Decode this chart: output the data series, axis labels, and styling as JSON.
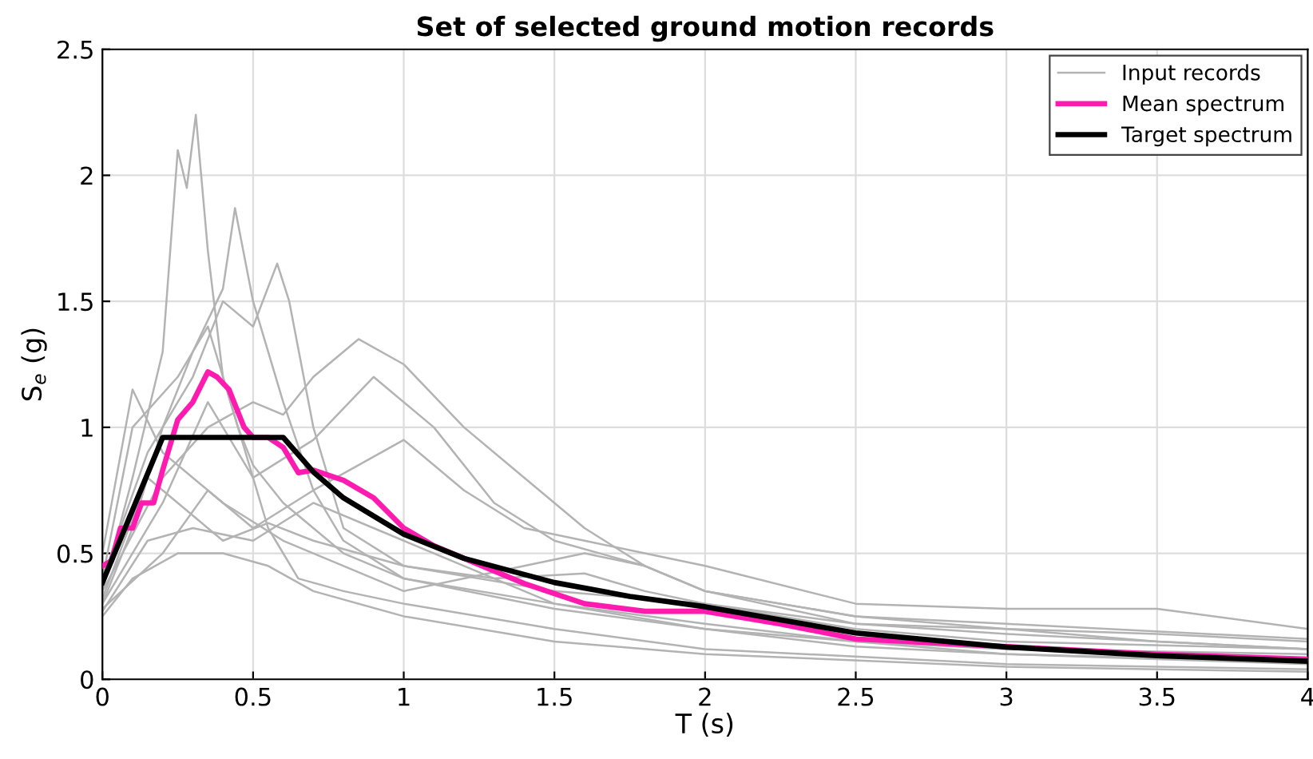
{
  "chart_data": {
    "type": "line",
    "title": "Set of selected ground motion records",
    "xlabel": "T (s)",
    "ylabel": "S$_{e}$ (g)",
    "xlim": [
      0,
      4
    ],
    "ylim": [
      0,
      2.5
    ],
    "xticks": [
      0,
      0.5,
      1,
      1.5,
      2,
      2.5,
      3,
      3.5,
      4
    ],
    "yticks": [
      0,
      0.5,
      1,
      1.5,
      2,
      2.5
    ],
    "grid": true,
    "legend": "top right",
    "marker": "none",
    "line_style": "solid",
    "series": [
      {
        "name": "Input records",
        "color": "#b3b3b3",
        "x": [
          0,
          0.1,
          0.2,
          0.25,
          0.28,
          0.31,
          0.35,
          0.4,
          0.45,
          0.5,
          0.6,
          0.8,
          1,
          1.5,
          2,
          2.5,
          3,
          3.5,
          4
        ],
        "values": [
          0.35,
          0.8,
          1.3,
          2.1,
          1.95,
          2.24,
          1.7,
          1.2,
          1.0,
          0.85,
          0.7,
          0.5,
          0.4,
          0.28,
          0.2,
          0.13,
          0.1,
          0.08,
          0.06
        ]
      },
      {
        "color": "#b3b3b3",
        "x": [
          0,
          0.1,
          0.2,
          0.3,
          0.4,
          0.44,
          0.5,
          0.55,
          0.6,
          0.7,
          0.8,
          1,
          1.5,
          2,
          2.5,
          3,
          4
        ],
        "values": [
          0.3,
          0.6,
          1.0,
          1.3,
          1.55,
          1.87,
          1.5,
          1.3,
          1.1,
          0.75,
          0.55,
          0.4,
          0.3,
          0.2,
          0.15,
          0.12,
          0.1
        ]
      },
      {
        "color": "#b3b3b3",
        "x": [
          0,
          0.15,
          0.3,
          0.4,
          0.5,
          0.58,
          0.62,
          0.7,
          0.8,
          1,
          1.5,
          2,
          2.5,
          3,
          4
        ],
        "values": [
          0.4,
          0.9,
          1.2,
          1.5,
          1.4,
          1.65,
          1.5,
          1.0,
          0.6,
          0.45,
          0.35,
          0.3,
          0.2,
          0.15,
          0.12
        ]
      },
      {
        "color": "#b3b3b3",
        "x": [
          0,
          0.2,
          0.35,
          0.5,
          0.6,
          0.7,
          0.85,
          1.0,
          1.2,
          1.4,
          1.6,
          1.8,
          2,
          2.5,
          3,
          3.5,
          4
        ],
        "values": [
          0.35,
          0.8,
          1.0,
          1.1,
          1.05,
          1.2,
          1.35,
          1.25,
          1.0,
          0.8,
          0.6,
          0.45,
          0.35,
          0.25,
          0.2,
          0.18,
          0.15
        ]
      },
      {
        "color": "#b3b3b3",
        "x": [
          0,
          0.2,
          0.35,
          0.5,
          0.7,
          0.9,
          1.1,
          1.3,
          1.5,
          1.8,
          2,
          2.5,
          3,
          4
        ],
        "values": [
          0.3,
          0.7,
          1.1,
          0.8,
          0.95,
          1.2,
          1.0,
          0.7,
          0.55,
          0.45,
          0.35,
          0.22,
          0.18,
          0.12
        ]
      },
      {
        "color": "#b3b3b3",
        "x": [
          0,
          0.2,
          0.35,
          0.5,
          0.7,
          1.0,
          1.2,
          1.4,
          1.6,
          1.8,
          2,
          2.5,
          3,
          3.5,
          4
        ],
        "values": [
          0.28,
          0.5,
          0.75,
          0.6,
          0.75,
          0.95,
          0.75,
          0.6,
          0.55,
          0.5,
          0.45,
          0.3,
          0.28,
          0.28,
          0.2
        ]
      },
      {
        "color": "#b3b3b3",
        "x": [
          0,
          0.1,
          0.25,
          0.35,
          0.45,
          0.55,
          0.65,
          0.8,
          1,
          1.5,
          2,
          3,
          4
        ],
        "values": [
          0.4,
          1.0,
          1.2,
          1.4,
          1.0,
          0.6,
          0.4,
          0.35,
          0.3,
          0.2,
          0.12,
          0.06,
          0.04
        ]
      },
      {
        "color": "#b3b3b3",
        "x": [
          0,
          0.15,
          0.3,
          0.4,
          0.55,
          0.7,
          1,
          1.3,
          1.6,
          1.8,
          2,
          2.5,
          3,
          3.5,
          4
        ],
        "values": [
          0.32,
          0.8,
          0.65,
          0.55,
          0.62,
          0.55,
          0.45,
          0.4,
          0.42,
          0.35,
          0.3,
          0.22,
          0.2,
          0.15,
          0.12
        ]
      },
      {
        "color": "#b3b3b3",
        "x": [
          0,
          0.1,
          0.25,
          0.4,
          0.55,
          0.7,
          1,
          1.5,
          2,
          3,
          4
        ],
        "values": [
          0.25,
          0.4,
          0.5,
          0.5,
          0.45,
          0.35,
          0.25,
          0.15,
          0.1,
          0.05,
          0.03
        ]
      },
      {
        "color": "#b3b3b3",
        "x": [
          0,
          0.1,
          0.2,
          0.3,
          0.4,
          0.6,
          0.8,
          1,
          1.4,
          1.6,
          1.8,
          2,
          2.5,
          3,
          4
        ],
        "values": [
          0.5,
          1.15,
          0.9,
          0.8,
          0.7,
          0.55,
          0.45,
          0.35,
          0.45,
          0.5,
          0.45,
          0.35,
          0.25,
          0.22,
          0.16
        ]
      },
      {
        "color": "#b3b3b3",
        "x": [
          0,
          0.15,
          0.3,
          0.5,
          0.7,
          0.9,
          1.2,
          1.5,
          2,
          2.5,
          3,
          4
        ],
        "values": [
          0.27,
          0.55,
          0.6,
          0.55,
          0.7,
          0.6,
          0.45,
          0.3,
          0.22,
          0.15,
          0.1,
          0.07
        ]
      },
      {
        "name": "Mean spectrum",
        "color": "#ff1ab0",
        "x": [
          0,
          0.03,
          0.06,
          0.1,
          0.13,
          0.17,
          0.2,
          0.25,
          0.3,
          0.35,
          0.38,
          0.42,
          0.47,
          0.5,
          0.55,
          0.6,
          0.65,
          0.7,
          0.8,
          0.9,
          1,
          1.1,
          1.2,
          1.4,
          1.6,
          1.8,
          2,
          2.25,
          2.5,
          3,
          3.5,
          4
        ],
        "values": [
          0.45,
          0.47,
          0.6,
          0.6,
          0.7,
          0.7,
          0.83,
          1.03,
          1.1,
          1.22,
          1.2,
          1.15,
          1.0,
          0.96,
          0.96,
          0.92,
          0.82,
          0.83,
          0.79,
          0.72,
          0.6,
          0.53,
          0.48,
          0.38,
          0.3,
          0.27,
          0.27,
          0.22,
          0.16,
          0.13,
          0.1,
          0.08
        ]
      },
      {
        "name": "Target spectrum",
        "color": "#000000",
        "x": [
          0,
          0.2,
          0.6,
          0.7,
          0.8,
          1,
          1.2,
          1.5,
          1.75,
          2,
          2.5,
          3,
          3.5,
          4
        ],
        "values": [
          0.384,
          0.96,
          0.96,
          0.823,
          0.72,
          0.576,
          0.48,
          0.384,
          0.329,
          0.288,
          0.184,
          0.128,
          0.094,
          0.072
        ]
      }
    ]
  }
}
